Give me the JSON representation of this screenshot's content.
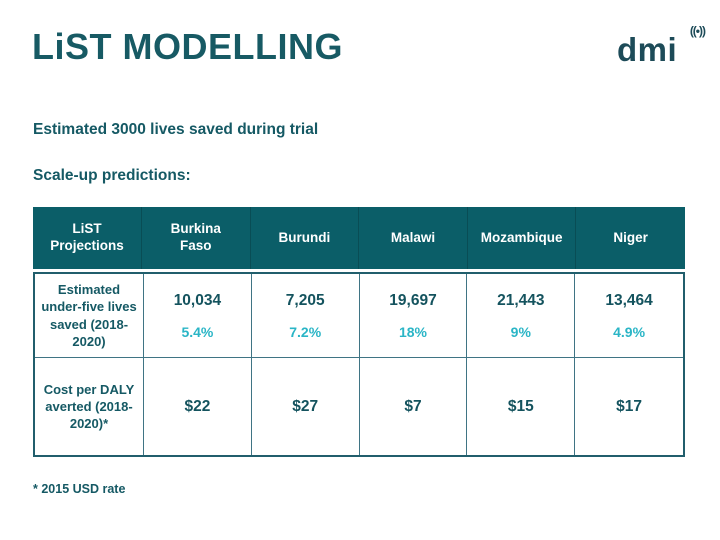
{
  "slide": {
    "title": "LiST MODELLING",
    "logo_text": "dmi",
    "logo_icon_glyph": "((•))",
    "line1": "Estimated 3000 lives saved during trial",
    "line2": "Scale-up predictions:",
    "footnote": "* 2015 USD rate"
  },
  "colors": {
    "dark_teal": "#155964",
    "header_teal": "#0b5e68",
    "accent_cyan": "#2ab5c6",
    "border_teal": "#3f7484"
  },
  "chart_data": {
    "type": "table",
    "header": [
      "LiST Projections",
      "Burkina Faso",
      "Burundi",
      "Malawi",
      "Mozambique",
      "Niger"
    ],
    "rows": [
      {
        "label": "Estimated under-five lives saved (2018-2020)",
        "cells": [
          {
            "value": "10,034",
            "percent": "5.4%"
          },
          {
            "value": "7,205",
            "percent": "7.2%"
          },
          {
            "value": "19,697",
            "percent": "18%"
          },
          {
            "value": "21,443",
            "percent": "9%"
          },
          {
            "value": "13,464",
            "percent": "4.9%"
          }
        ]
      },
      {
        "label": "Cost per DALY averted (2018-2020)*",
        "cells": [
          {
            "value": "$22"
          },
          {
            "value": "$27"
          },
          {
            "value": "$7"
          },
          {
            "value": "$15"
          },
          {
            "value": "$17"
          }
        ]
      }
    ]
  }
}
